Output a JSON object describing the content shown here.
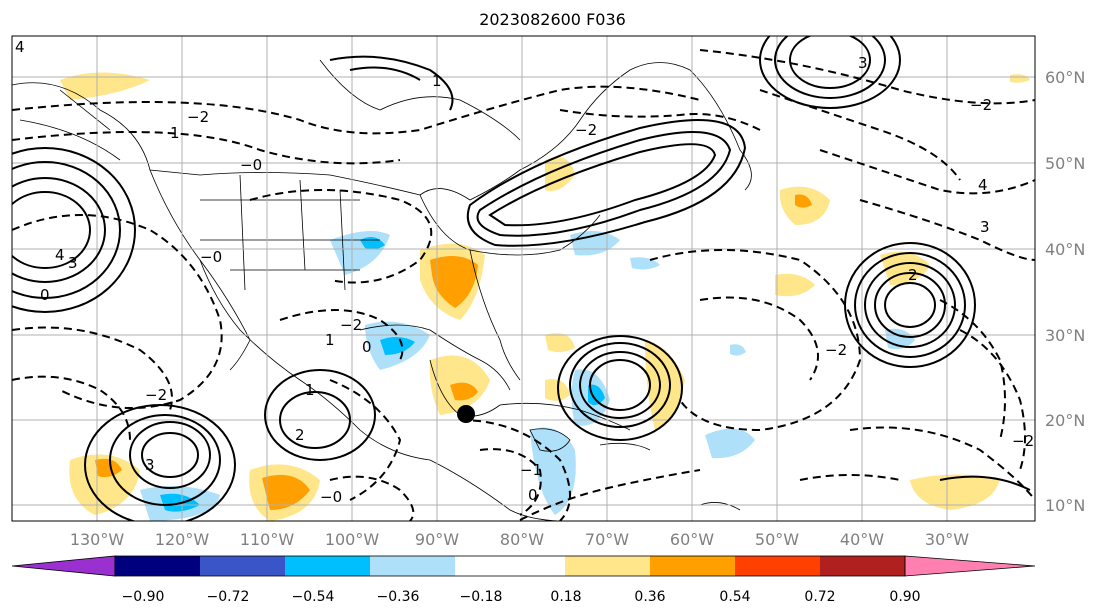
{
  "title": "2023082600 F036",
  "longitude_labels": [
    "130°W",
    "120°W",
    "110°W",
    "100°W",
    "90°W",
    "80°W",
    "70°W",
    "60°W",
    "50°W",
    "40°W",
    "30°W"
  ],
  "latitude_labels": [
    "60°N",
    "50°N",
    "40°N",
    "30°N",
    "20°N",
    "10°N"
  ],
  "colorbar": {
    "tick_labels": [
      "−0.90",
      "−0.72",
      "−0.54",
      "−0.36",
      "−0.18",
      "0.18",
      "0.36",
      "0.54",
      "0.72",
      "0.90"
    ],
    "colors": [
      "#9b30d0",
      "#00007f",
      "#3a55c8",
      "#00bfff",
      "#aee0fa",
      "#ffffff",
      "#ffe68a",
      "#ff9f00",
      "#ff4000",
      "#b0201e",
      "#ff80b0"
    ]
  },
  "contour_labels": [
    "4",
    "3",
    "2",
    "1",
    "0",
    "−0",
    "2",
    "1",
    "−1",
    "−2"
  ],
  "marker": "cyclone-center"
}
